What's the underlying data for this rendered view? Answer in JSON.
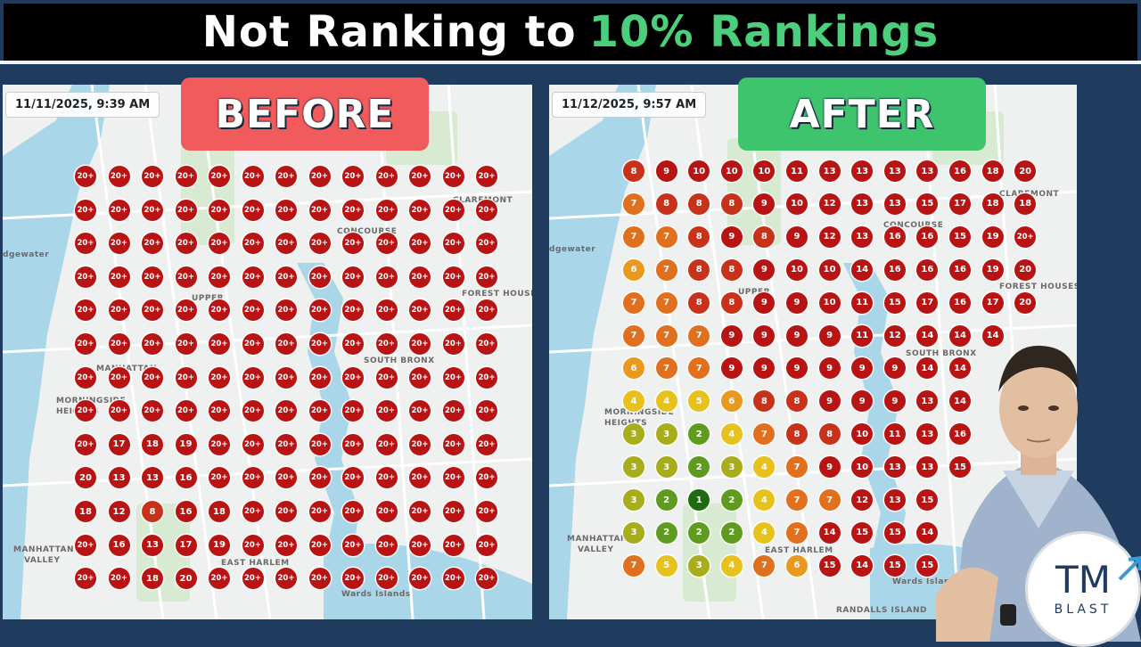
{
  "title": {
    "main": "Not Ranking to",
    "accent": "10% Rankings"
  },
  "before": {
    "banner": "BEFORE",
    "timestamp": "11/11/2025, 9:39 AM",
    "rows": [
      [
        "20+",
        "20+",
        "20+",
        "20+",
        "20+",
        "20+",
        "20+",
        "20+",
        "20+",
        "20+",
        "20+",
        "20+",
        "20+"
      ],
      [
        "20+",
        "20+",
        "20+",
        "20+",
        "20+",
        "20+",
        "20+",
        "20+",
        "20+",
        "20+",
        "20+",
        "20+",
        "20+"
      ],
      [
        "20+",
        "20+",
        "20+",
        "20+",
        "20+",
        "20+",
        "20+",
        "20+",
        "20+",
        "20+",
        "20+",
        "20+",
        "20+"
      ],
      [
        "20+",
        "20+",
        "20+",
        "20+",
        "20+",
        "20+",
        "20+",
        "20+",
        "20+",
        "20+",
        "20+",
        "20+",
        "20+"
      ],
      [
        "20+",
        "20+",
        "20+",
        "20+",
        "20+",
        "20+",
        "20+",
        "20+",
        "20+",
        "20+",
        "20+",
        "20+",
        "20+"
      ],
      [
        "20+",
        "20+",
        "20+",
        "20+",
        "20+",
        "20+",
        "20+",
        "20+",
        "20+",
        "20+",
        "20+",
        "20+",
        "20+"
      ],
      [
        "20+",
        "20+",
        "20+",
        "20+",
        "20+",
        "20+",
        "20+",
        "20+",
        "20+",
        "20+",
        "20+",
        "20+",
        "20+"
      ],
      [
        "20+",
        "20+",
        "20+",
        "20+",
        "20+",
        "20+",
        "20+",
        "20+",
        "20+",
        "20+",
        "20+",
        "20+",
        "20+"
      ],
      [
        "20+",
        "17",
        "18",
        "19",
        "20+",
        "20+",
        "20+",
        "20+",
        "20+",
        "20+",
        "20+",
        "20+",
        "20+"
      ],
      [
        "20",
        "13",
        "13",
        "16",
        "20+",
        "20+",
        "20+",
        "20+",
        "20+",
        "20+",
        "20+",
        "20+",
        "20+"
      ],
      [
        "18",
        "12",
        "8",
        "16",
        "18",
        "20+",
        "20+",
        "20+",
        "20+",
        "20+",
        "20+",
        "20+",
        "20+"
      ],
      [
        "20+",
        "16",
        "13",
        "17",
        "19",
        "20+",
        "20+",
        "20+",
        "20+",
        "20+",
        "20+",
        "20+",
        "20+"
      ],
      [
        "20+",
        "20+",
        "18",
        "20",
        "20+",
        "20+",
        "20+",
        "20+",
        "20+",
        "20+",
        "20+",
        "20+",
        "20+"
      ]
    ],
    "map_labels": [
      "CLAREMONT",
      "CONCOURSE",
      "FOREST HOUSES",
      "UPPER",
      "SOUTH BRONX",
      "MANHATTAN",
      "MORNINGSIDE",
      "HEIGHTS",
      "EAST HARLEM",
      "MANHATTAN",
      "VALLEY",
      "Wards Islands",
      "dgewater"
    ]
  },
  "after": {
    "banner": "AFTER",
    "timestamp": "11/12/2025, 9:57 AM",
    "rows": [
      [
        "8",
        "9",
        "10",
        "10",
        "10",
        "11",
        "13",
        "13",
        "13",
        "13",
        "16",
        "18",
        "20"
      ],
      [
        "7",
        "8",
        "8",
        "8",
        "9",
        "10",
        "12",
        "13",
        "13",
        "15",
        "17",
        "18",
        "18"
      ],
      [
        "7",
        "7",
        "8",
        "9",
        "8",
        "9",
        "12",
        "13",
        "16",
        "16",
        "15",
        "19",
        "20+"
      ],
      [
        "6",
        "7",
        "8",
        "8",
        "9",
        "10",
        "10",
        "14",
        "16",
        "16",
        "16",
        "19",
        "20"
      ],
      [
        "7",
        "7",
        "8",
        "8",
        "9",
        "9",
        "10",
        "11",
        "15",
        "17",
        "16",
        "17",
        "20"
      ],
      [
        "7",
        "7",
        "7",
        "9",
        "9",
        "9",
        "9",
        "11",
        "12",
        "14",
        "14",
        "14",
        ""
      ],
      [
        "6",
        "7",
        "7",
        "9",
        "9",
        "9",
        "9",
        "9",
        "9",
        "14",
        "14",
        "",
        ""
      ],
      [
        "4",
        "4",
        "5",
        "6",
        "8",
        "8",
        "9",
        "9",
        "9",
        "13",
        "14",
        "",
        ""
      ],
      [
        "3",
        "3",
        "2",
        "4",
        "7",
        "8",
        "8",
        "10",
        "11",
        "13",
        "16",
        "",
        ""
      ],
      [
        "3",
        "3",
        "2",
        "3",
        "4",
        "7",
        "9",
        "10",
        "13",
        "13",
        "15",
        "",
        ""
      ],
      [
        "3",
        "2",
        "1",
        "2",
        "4",
        "7",
        "7",
        "12",
        "13",
        "15",
        "",
        "",
        ""
      ],
      [
        "3",
        "2",
        "2",
        "2",
        "4",
        "7",
        "14",
        "15",
        "15",
        "14",
        "",
        "",
        ""
      ],
      [
        "7",
        "5",
        "3",
        "4",
        "7",
        "6",
        "15",
        "14",
        "15",
        "15",
        "",
        "",
        ""
      ]
    ],
    "map_labels": [
      "CLAREMONT",
      "CONCOURSE",
      "FOREST HOUSES",
      "UPPER",
      "SOUTH BRONX",
      "MORNINGSIDE",
      "HEIGHTS",
      "EAST HARLEM",
      "MANHATTAN",
      "VALLEY",
      "Wards Islands",
      "RANDALLS ISLAND",
      "dgewater"
    ]
  },
  "colors": {
    "red": "#b81414",
    "red_orange": "#c8321a",
    "orange": "#e0701e",
    "amber": "#e99a1e",
    "yellow": "#e8c21c",
    "olive": "#a8ad1c",
    "green": "#5f9b1e",
    "dark_green": "#1f6b12"
  },
  "logo": {
    "mark": "TM",
    "sub": "BLAST"
  }
}
